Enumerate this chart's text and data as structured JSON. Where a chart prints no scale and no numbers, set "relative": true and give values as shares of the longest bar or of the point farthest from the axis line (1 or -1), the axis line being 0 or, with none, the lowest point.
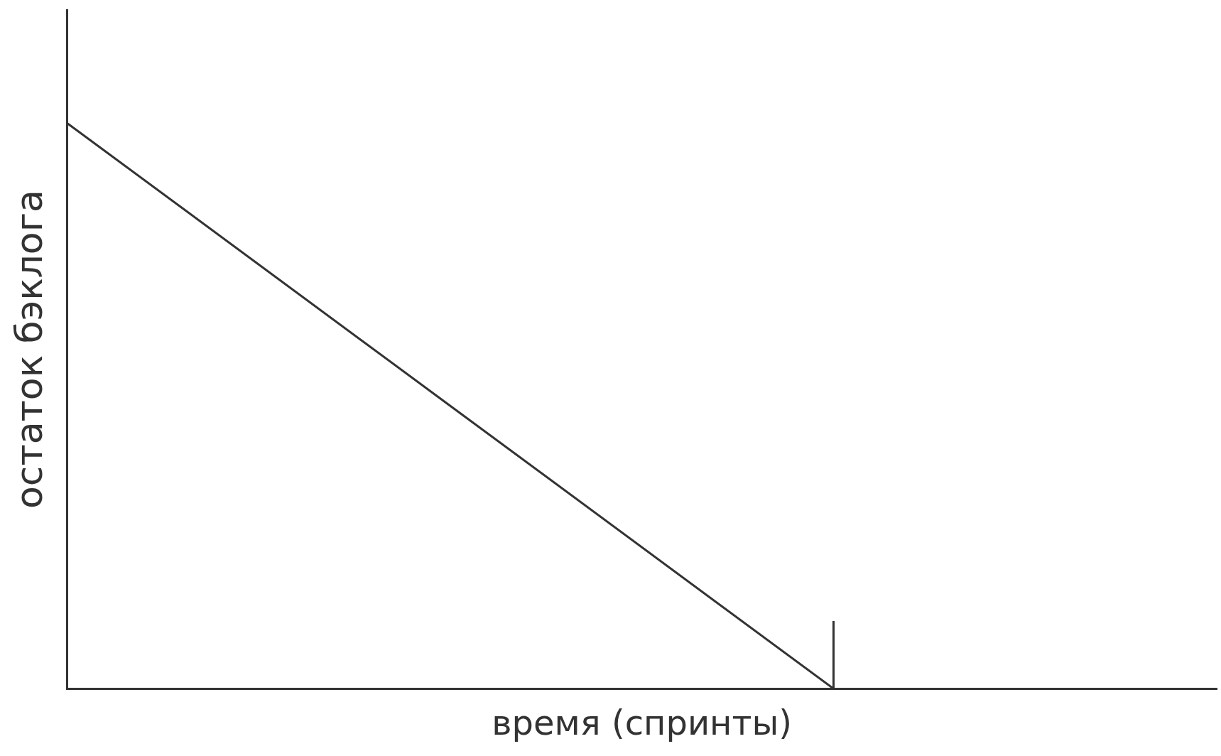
{
  "chart_data": {
    "type": "line",
    "relative": true,
    "xlabel": "время (спринты)",
    "ylabel": "остаток бэклога",
    "categories": [
      null,
      null,
      null,
      null
    ],
    "series": [
      {
        "color": "#333333",
        "values": [
          1,
          0.5,
          0,
          null
        ]
      }
    ],
    "grid": false,
    "legend": false,
    "marker": "none",
    "line_style": "solid"
  }
}
